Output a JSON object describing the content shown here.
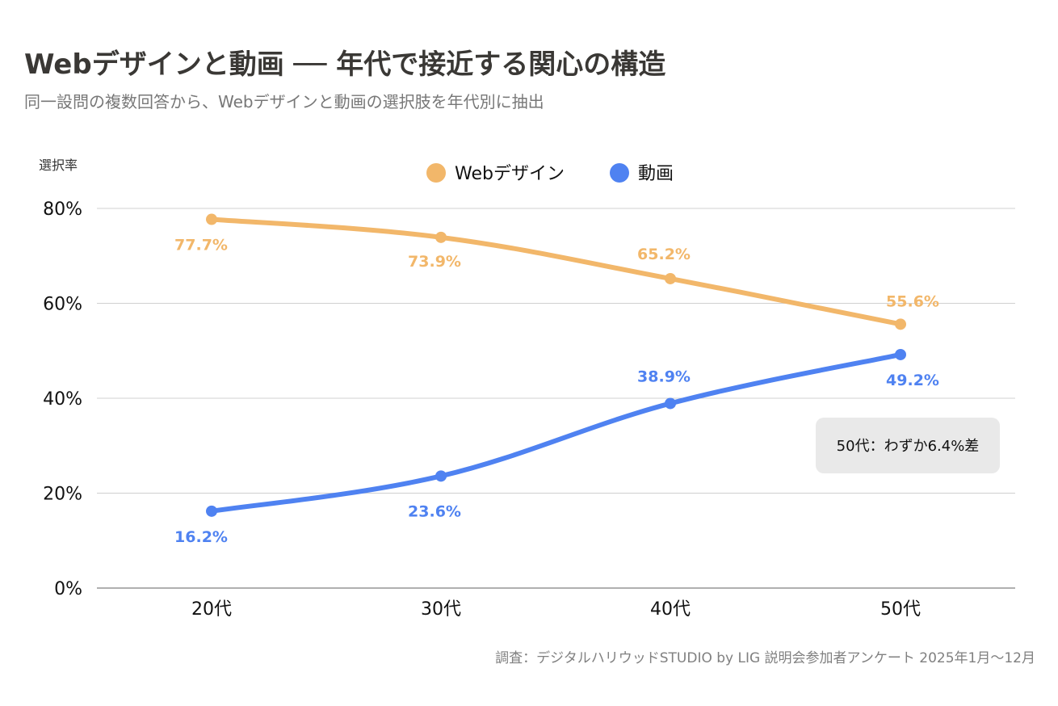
{
  "header": {
    "title": "Webデザインと動画 ── 年代で接近する関心の構造",
    "subtitle": "同一設問の複数回答から、Webデザインと動画の選択肢を年代別に抽出"
  },
  "footer": {
    "source": "調査：デジタルハリウッドSTUDIO by LIG  説明会参加者アンケート 2025年1月〜12月"
  },
  "colors": {
    "web_design": "#F2B76A",
    "video": "#4F82F1",
    "grid": "#D0D0D0",
    "axis": "#B0B0B0",
    "annotation_bg": "#E9E9E9"
  },
  "chart_data": {
    "type": "line",
    "title": "Webデザインと動画 ── 年代で接近する関心の構造",
    "subtitle": "同一設問の複数回答から、Webデザインと動画の選択肢を年代別に抽出",
    "xlabel": "",
    "ylabel": "選択率",
    "categories": [
      "20代",
      "30代",
      "40代",
      "50代"
    ],
    "series": [
      {
        "name": "Webデザイン",
        "color": "#F2B76A",
        "values": [
          77.7,
          73.9,
          65.2,
          55.6
        ],
        "labels": [
          "77.7%",
          "73.9%",
          "65.2%",
          "55.6%"
        ]
      },
      {
        "name": "動画",
        "color": "#4F82F1",
        "values": [
          16.2,
          23.6,
          38.9,
          49.2
        ],
        "labels": [
          "16.2%",
          "23.6%",
          "38.9%",
          "49.2%"
        ]
      }
    ],
    "ylim": [
      0,
      80
    ],
    "yticks": [
      0,
      20,
      40,
      60,
      80
    ],
    "ytick_labels": [
      "0%",
      "20%",
      "40%",
      "60%",
      "80%"
    ],
    "grid": true,
    "legend_position": "top-center",
    "smooth": true,
    "annotation": {
      "text": "50代：わずか6.4%差",
      "anchor_category": "50代"
    }
  }
}
